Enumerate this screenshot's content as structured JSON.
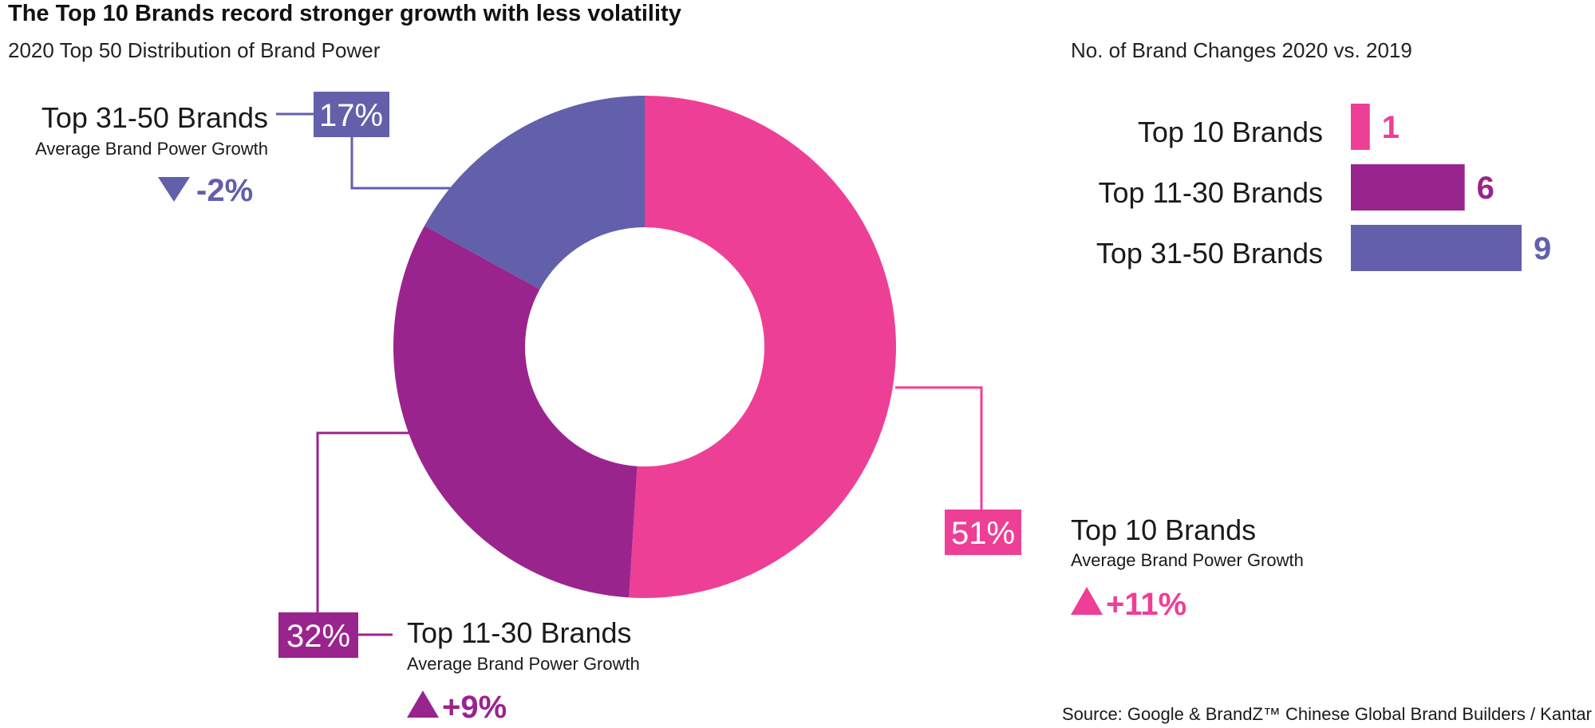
{
  "title": "The Top 10 Brands record stronger growth with less volatility",
  "source": "Source: Google & BrandZ™ Chinese Global Brand Builders / Kantar",
  "chart_data": [
    {
      "type": "pie",
      "title": "2020 Top 50 Distribution of Brand Power",
      "categories": [
        "Top 10 Brands",
        "Top 11-30 Brands",
        "Top 31-50 Brands"
      ],
      "values": [
        51,
        32,
        17
      ],
      "value_labels": [
        "51%",
        "32%",
        "17%"
      ],
      "colors": [
        "#ee3f96",
        "#9a248d",
        "#625fab"
      ],
      "annotation_caption": "Average Brand Power Growth",
      "annotations": [
        {
          "category": "Top 10 Brands",
          "direction": "up",
          "text": "+11%"
        },
        {
          "category": "Top 11-30 Brands",
          "direction": "up",
          "text": "+9%"
        },
        {
          "category": "Top 31-50 Brands",
          "direction": "down",
          "text": "-2%"
        }
      ]
    },
    {
      "type": "bar",
      "orientation": "horizontal",
      "title": "No. of Brand Changes 2020 vs. 2019",
      "categories": [
        "Top 10 Brands",
        "Top 11-30 Brands",
        "Top 31-50 Brands"
      ],
      "values": [
        1,
        6,
        9
      ],
      "colors": [
        "#ee3f96",
        "#9a248d",
        "#625fab"
      ],
      "xlim": [
        0,
        9
      ]
    }
  ]
}
